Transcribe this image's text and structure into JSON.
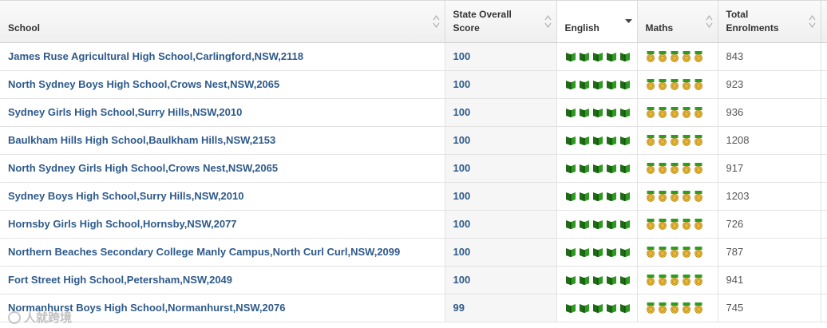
{
  "headers": {
    "school": "School",
    "score_line1": "State Overall",
    "score_line2": "Score",
    "english": "English",
    "maths": "Maths",
    "total_line1": "Total",
    "total_line2": "Enrolments"
  },
  "icons": {
    "english": "book-icon",
    "maths": "medal-icon",
    "english_color": "#2f8a1f",
    "maths_color": "#e0b22a"
  },
  "rows": [
    {
      "school": "James Ruse Agricultural High School,Carlingford,NSW,2118",
      "score": "100",
      "english": 5,
      "maths": 5,
      "enrolments": "843"
    },
    {
      "school": "North Sydney Boys High School,Crows Nest,NSW,2065",
      "score": "100",
      "english": 5,
      "maths": 5,
      "enrolments": "923"
    },
    {
      "school": "Sydney Girls High School,Surry Hills,NSW,2010",
      "score": "100",
      "english": 5,
      "maths": 5,
      "enrolments": "936"
    },
    {
      "school": "Baulkham Hills High School,Baulkham Hills,NSW,2153",
      "score": "100",
      "english": 5,
      "maths": 5,
      "enrolments": "1208"
    },
    {
      "school": "North Sydney Girls High School,Crows Nest,NSW,2065",
      "score": "100",
      "english": 5,
      "maths": 5,
      "enrolments": "917"
    },
    {
      "school": "Sydney Boys High School,Surry Hills,NSW,2010",
      "score": "100",
      "english": 5,
      "maths": 5,
      "enrolments": "1203"
    },
    {
      "school": "Hornsby Girls High School,Hornsby,NSW,2077",
      "score": "100",
      "english": 5,
      "maths": 5,
      "enrolments": "726"
    },
    {
      "school": "Northern Beaches Secondary College Manly Campus,North Curl Curl,NSW,2099",
      "score": "100",
      "english": 5,
      "maths": 5,
      "enrolments": "787"
    },
    {
      "school": "Fort Street High School,Petersham,NSW,2049",
      "score": "100",
      "english": 5,
      "maths": 5,
      "enrolments": "941"
    },
    {
      "school": "Normanhurst Boys High School,Normanhurst,NSW,2076",
      "score": "99",
      "english": 5,
      "maths": 5,
      "enrolments": "745"
    }
  ],
  "watermark": "人就跨境"
}
